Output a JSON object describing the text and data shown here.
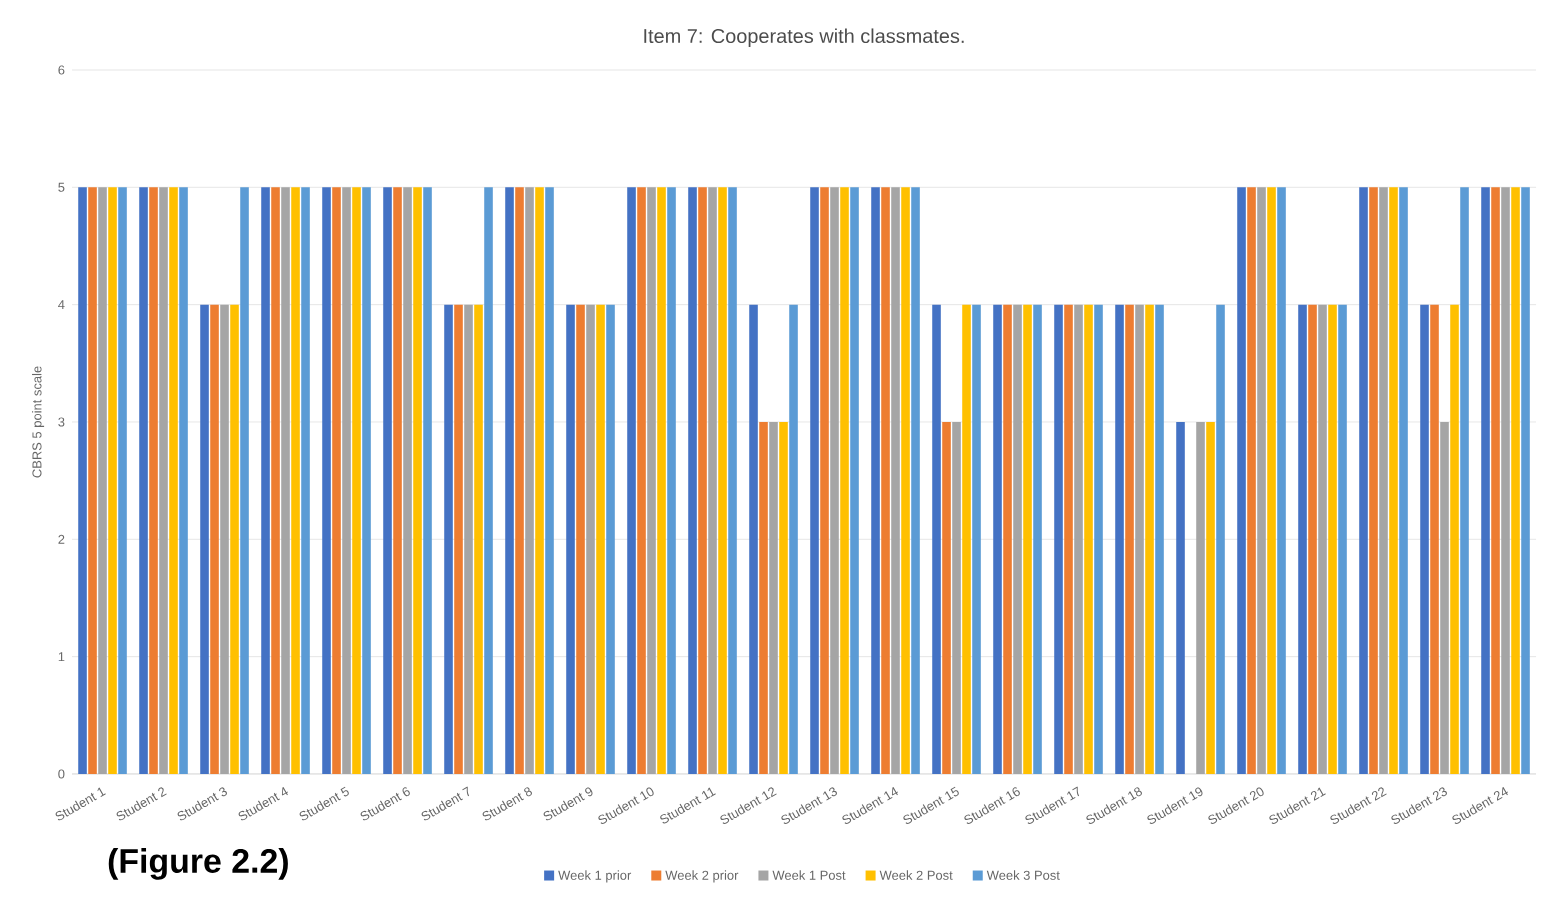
{
  "chart_data": {
    "type": "bar",
    "title": "Item 7: Cooperates with classmates.",
    "ylabel": "CBRS 5 point scale",
    "categories": [
      "Student 1",
      "Student 2",
      "Student 3",
      "Student 4",
      "Student 5",
      "Student 6",
      "Student 7",
      "Student 8",
      "Student 9",
      "Student 10",
      "Student 11",
      "Student 12",
      "Student 13",
      "Student 14",
      "Student 15",
      "Student 16",
      "Student 17",
      "Student 18",
      "Student 19",
      "Student 20",
      "Student 21",
      "Student 22",
      "Student 23",
      "Student 24"
    ],
    "series": [
      {
        "name": "Week 1 prior",
        "color": "#4472c4",
        "values": [
          5,
          5,
          4,
          5,
          5,
          5,
          4,
          5,
          4,
          5,
          5,
          4,
          5,
          5,
          4,
          4,
          4,
          4,
          3,
          5,
          4,
          5,
          4,
          5
        ]
      },
      {
        "name": "Week 2 prior",
        "color": "#ed7d31",
        "values": [
          5,
          5,
          4,
          5,
          5,
          5,
          4,
          5,
          4,
          5,
          5,
          3,
          5,
          5,
          3,
          4,
          4,
          4,
          null,
          5,
          4,
          5,
          4,
          5
        ]
      },
      {
        "name": "Week 1 Post",
        "color": "#a5a5a5",
        "values": [
          5,
          5,
          4,
          5,
          5,
          5,
          4,
          5,
          4,
          5,
          5,
          3,
          5,
          5,
          3,
          4,
          4,
          4,
          3,
          5,
          4,
          5,
          3,
          5
        ]
      },
      {
        "name": "Week 2 Post",
        "color": "#ffc000",
        "values": [
          5,
          5,
          4,
          5,
          5,
          5,
          4,
          5,
          4,
          5,
          5,
          3,
          5,
          5,
          4,
          4,
          4,
          4,
          3,
          5,
          4,
          5,
          4,
          5
        ]
      },
      {
        "name": "Week 3 Post",
        "color": "#5b9bd5",
        "values": [
          5,
          5,
          5,
          5,
          5,
          5,
          5,
          5,
          4,
          5,
          5,
          4,
          5,
          5,
          4,
          4,
          4,
          4,
          4,
          5,
          4,
          5,
          5,
          5
        ]
      }
    ],
    "ylim": [
      0,
      6
    ],
    "yticks": [
      0,
      1,
      2,
      3,
      4,
      5,
      6
    ],
    "grid": "y",
    "legend": "bottom",
    "annotations": [
      "(Figure 2.2)"
    ]
  }
}
